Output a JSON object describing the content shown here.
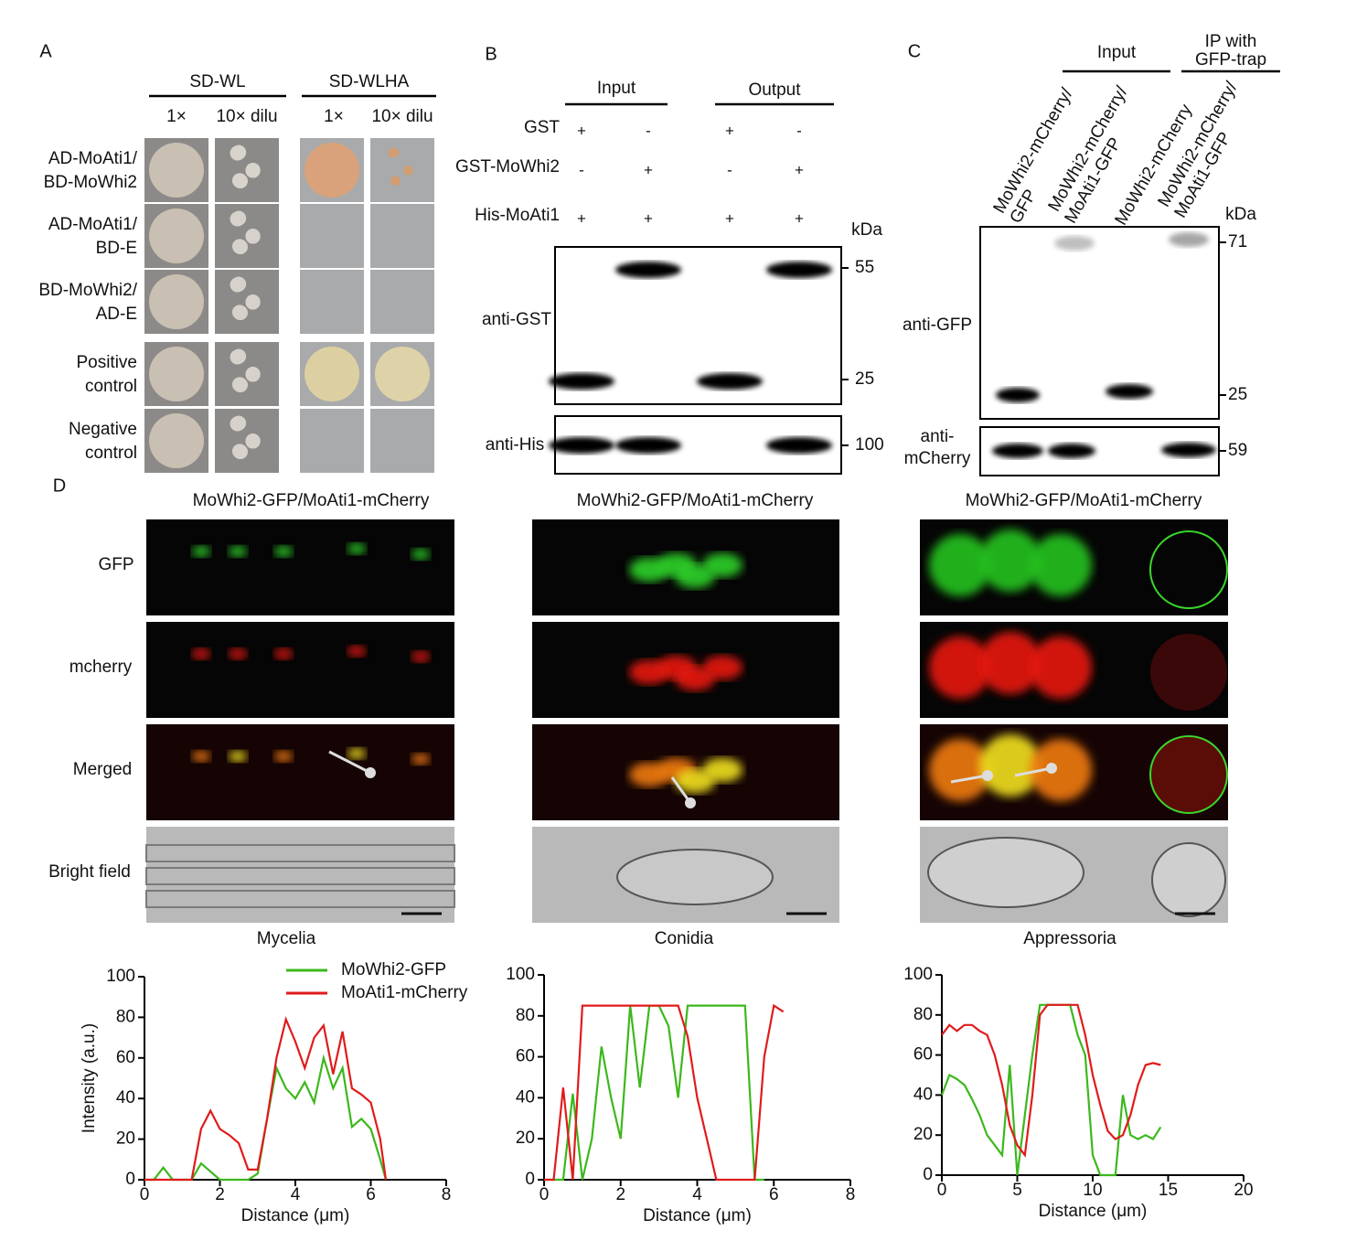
{
  "panel_a": {
    "label": "A",
    "groups": [
      {
        "title": "SD-WL",
        "columns": [
          "1×",
          "10× dilu"
        ]
      },
      {
        "title": "SD-WLHA",
        "columns": [
          "1×",
          "10× dilu"
        ]
      }
    ],
    "rows": [
      [
        "AD-MoAti1/",
        "BD-MoWhi2"
      ],
      [
        "AD-MoAti1/",
        "BD-E"
      ],
      [
        "BD-MoWhi2/",
        "AD-E"
      ],
      [
        "Positive",
        "control"
      ],
      [
        "Negative",
        "control"
      ]
    ]
  },
  "panel_b": {
    "label": "B",
    "groups": [
      "Input",
      "Output"
    ],
    "rows": [
      {
        "label": "GST",
        "signs": [
          "+",
          "-",
          "+",
          "-"
        ]
      },
      {
        "label": "GST-MoWhi2",
        "signs": [
          "-",
          "+",
          "-",
          "+"
        ]
      },
      {
        "label": "His-MoAti1",
        "signs": [
          "+",
          "+",
          "+",
          "+"
        ]
      }
    ],
    "unit": "kDa",
    "blots": [
      {
        "label": [
          "anti-GST"
        ],
        "markers": [
          "55",
          "25"
        ]
      },
      {
        "label": [
          "anti-His"
        ],
        "markers": [
          "100"
        ]
      }
    ]
  },
  "panel_c": {
    "label": "C",
    "groups": [
      [
        "Input"
      ],
      [
        "IP with",
        "GFP-trap"
      ]
    ],
    "lanes": [
      [
        "MoWhi2-mCherry/",
        "GFP"
      ],
      [
        "MoWhi2-mCherry/",
        "MoAti1-GFP"
      ],
      [
        "MoWhi2-mCherry"
      ],
      [
        "MoWhi2-mCherry/",
        "MoAti1-GFP"
      ]
    ],
    "unit": "kDa",
    "blots": [
      {
        "label": [
          "anti-GFP"
        ],
        "markers": [
          "71",
          "25"
        ]
      },
      {
        "label": [
          "anti-",
          "mCherry"
        ],
        "markers": [
          "59"
        ]
      }
    ]
  },
  "panel_d": {
    "label": "D",
    "titles": [
      "MoWhi2-GFP/MoAti1-mCherry",
      "MoWhi2-GFP/MoAti1-mCherry",
      "MoWhi2-GFP/MoAti1-mCherry"
    ],
    "rows": [
      "GFP",
      "mcherry",
      "Merged",
      "Bright field"
    ],
    "captions": [
      "Mycelia",
      "Conidia",
      "Appressoria"
    ]
  },
  "chart_data": [
    {
      "type": "line",
      "xlabel": "Distance (μm)",
      "ylabel": "Intensity (a.u.)",
      "x": [
        0,
        0.25,
        0.5,
        0.75,
        1,
        1.25,
        1.5,
        1.75,
        2,
        2.25,
        2.5,
        2.75,
        3,
        3.25,
        3.5,
        3.75,
        4,
        4.25,
        4.5,
        4.75,
        5,
        5.25,
        5.5,
        5.75,
        6,
        6.25,
        6.4
      ],
      "series": [
        {
          "name": "MoWhi2-GFP",
          "color": "#3cb81c",
          "values": [
            0,
            0,
            6,
            0,
            0,
            0,
            8,
            4,
            0,
            0,
            0,
            0,
            3,
            30,
            55,
            45,
            40,
            48,
            38,
            60,
            45,
            55,
            26,
            30,
            25,
            10,
            0
          ]
        },
        {
          "name": "MoAti1-mCherry",
          "color": "#e01b1b",
          "values": [
            0,
            0,
            0,
            0,
            0,
            0,
            25,
            34,
            25,
            22,
            18,
            5,
            5,
            30,
            60,
            79,
            68,
            55,
            70,
            76,
            52,
            73,
            45,
            42,
            38,
            20,
            0
          ]
        }
      ],
      "xlim": [
        0,
        8
      ],
      "xticks": [
        0,
        2,
        4,
        6,
        8
      ],
      "ylim": [
        0,
        100
      ],
      "yticks": [
        0,
        20,
        40,
        60,
        80,
        100
      ]
    },
    {
      "type": "line",
      "xlabel": "Distance (μm)",
      "x": [
        0,
        0.25,
        0.5,
        0.75,
        1,
        1.25,
        1.5,
        1.75,
        2,
        2.25,
        2.5,
        2.75,
        3,
        3.25,
        3.5,
        3.75,
        4,
        4.25,
        4.5,
        4.75,
        5,
        5.25,
        5.5,
        5.75,
        6,
        6.25
      ],
      "series": [
        {
          "color": "#3cb81c",
          "values": [
            0,
            0,
            0,
            42,
            0,
            20,
            65,
            40,
            20,
            85,
            45,
            85,
            85,
            75,
            40,
            85,
            85,
            85,
            85,
            85,
            85,
            85,
            0,
            0,
            null,
            null
          ]
        },
        {
          "color": "#e01b1b",
          "values": [
            0,
            0,
            45,
            0,
            85,
            85,
            85,
            85,
            85,
            85,
            85,
            85,
            85,
            85,
            85,
            70,
            40,
            20,
            0,
            0,
            0,
            0,
            0,
            60,
            85,
            82
          ]
        }
      ],
      "xlim": [
        0,
        8
      ],
      "xticks": [
        0,
        2,
        4,
        6,
        8
      ],
      "ylim": [
        0,
        100
      ],
      "yticks": [
        0,
        20,
        40,
        60,
        80,
        100
      ]
    },
    {
      "type": "line",
      "xlabel": "Distance (μm)",
      "x": [
        0,
        0.5,
        1,
        1.5,
        2,
        2.5,
        3,
        3.5,
        4,
        4.5,
        5,
        5.5,
        6,
        6.5,
        7,
        7.5,
        8,
        8.5,
        9,
        9.5,
        10,
        10.5,
        11,
        11.5,
        12,
        12.5,
        13,
        13.5,
        14,
        14.5
      ],
      "series": [
        {
          "color": "#3cb81c",
          "values": [
            40,
            50,
            48,
            45,
            38,
            30,
            20,
            15,
            10,
            55,
            0,
            30,
            60,
            85,
            85,
            85,
            85,
            85,
            70,
            60,
            10,
            0,
            0,
            0,
            40,
            20,
            18,
            20,
            18,
            24
          ]
        },
        {
          "color": "#e01b1b",
          "values": [
            70,
            75,
            72,
            75,
            75,
            72,
            70,
            60,
            45,
            25,
            15,
            10,
            40,
            80,
            85,
            85,
            85,
            85,
            85,
            70,
            50,
            35,
            22,
            18,
            20,
            30,
            45,
            55,
            56,
            55
          ]
        }
      ],
      "xlim": [
        0,
        20
      ],
      "xticks": [
        0,
        5,
        10,
        15,
        20
      ],
      "ylim": [
        0,
        100
      ],
      "yticks": [
        0,
        20,
        40,
        60,
        80,
        100
      ]
    }
  ]
}
